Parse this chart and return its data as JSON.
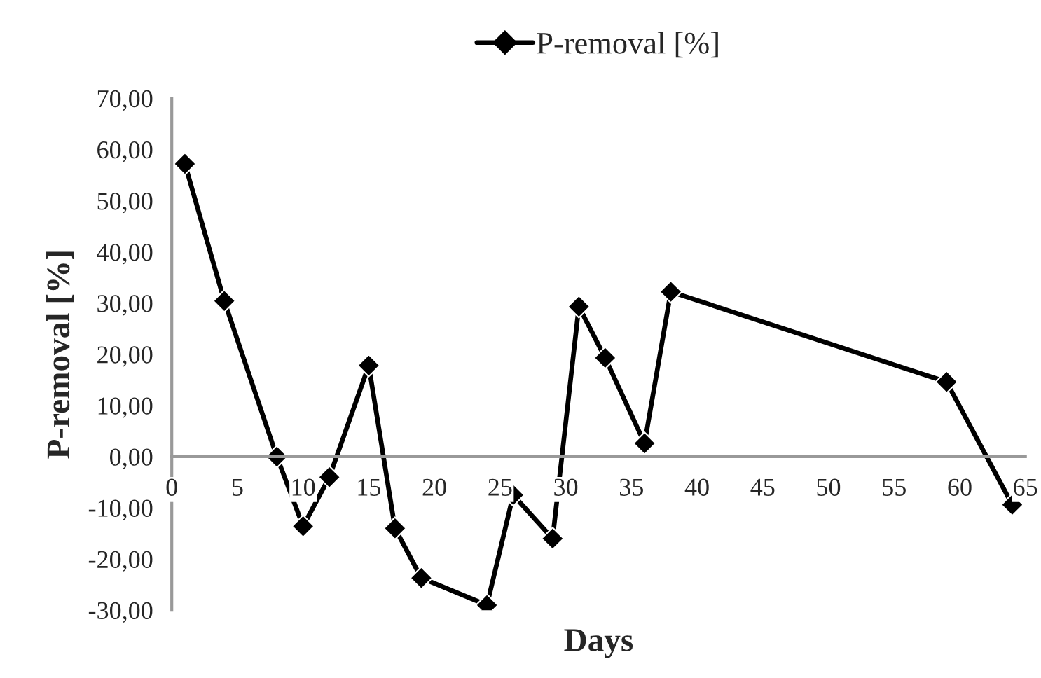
{
  "chart_data": {
    "type": "line",
    "xlabel": "Days",
    "ylabel": "P-removal [%]",
    "x": [
      1,
      4,
      8,
      10,
      12,
      15,
      17,
      19,
      24,
      26,
      29,
      31,
      33,
      36,
      38,
      59,
      64
    ],
    "series": [
      {
        "name": "P-removal [%]",
        "color": "#000000",
        "values": [
          57.2,
          30.4,
          0,
          -13.6,
          -4,
          17.8,
          -14,
          -23.7,
          -29,
          -7.5,
          -16,
          29.3,
          19.3,
          2.6,
          32.2,
          14.6,
          -9.4
        ]
      }
    ],
    "xlim": [
      0,
      65
    ],
    "xticks": [
      0,
      5,
      10,
      15,
      20,
      25,
      30,
      35,
      40,
      45,
      50,
      55,
      60,
      65
    ],
    "ylim": [
      -30,
      70
    ],
    "yticks": [
      {
        "value": -30,
        "label": "-30,00"
      },
      {
        "value": -20,
        "label": "-20,00"
      },
      {
        "value": -10,
        "label": "-10,00"
      },
      {
        "value": 0,
        "label": "0,00"
      },
      {
        "value": 10,
        "label": "10,00"
      },
      {
        "value": 20,
        "label": "20,00"
      },
      {
        "value": 30,
        "label": "30,00"
      },
      {
        "value": 40,
        "label": "40,00"
      },
      {
        "value": 50,
        "label": "50,00"
      },
      {
        "value": 60,
        "label": "60,00"
      },
      {
        "value": 70,
        "label": "70,00"
      }
    ],
    "grid": false,
    "legend": "top",
    "marker": "diamond",
    "line_style": "solid"
  }
}
